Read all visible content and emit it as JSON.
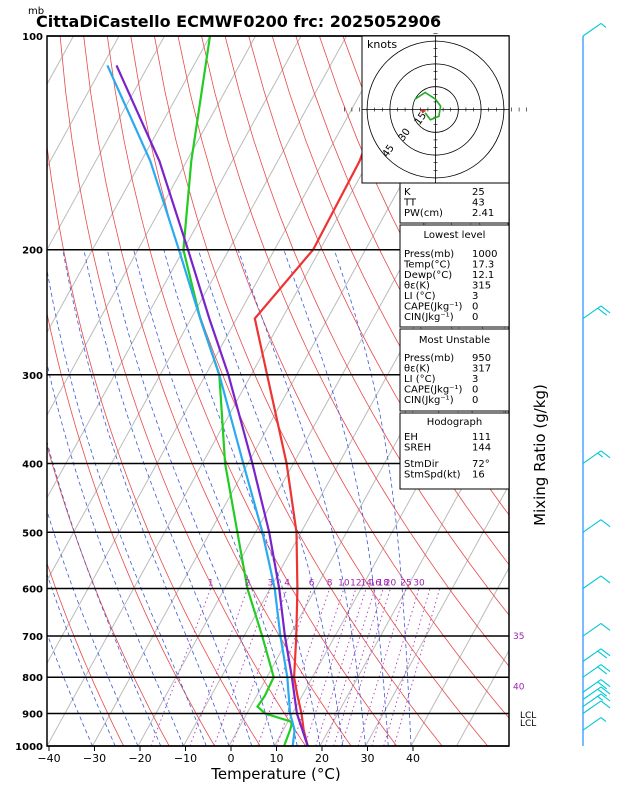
{
  "header": {
    "unit_top": "mb",
    "title": "CittaDiCastello ECMWF0200 frc: 2025052906"
  },
  "chart_data": {
    "type": "skew-t",
    "xlabel": "Temperature (°C)",
    "ylabel_right": "Mixing Ratio (g/kg)",
    "x_ticks": [
      "−40",
      "−30",
      "−20",
      "−10",
      "0",
      "10",
      "20",
      "30",
      "40"
    ],
    "y_ticks": [
      {
        "p": 100,
        "label": "100"
      },
      {
        "p": 200,
        "label": "200"
      },
      {
        "p": 300,
        "label": "300"
      },
      {
        "p": 400,
        "label": "400"
      },
      {
        "p": 500,
        "label": "500"
      },
      {
        "p": 600,
        "label": "600"
      },
      {
        "p": 700,
        "label": "700"
      },
      {
        "p": 800,
        "label": "800"
      },
      {
        "p": 900,
        "label": "900"
      },
      {
        "p": 1000,
        "label": "1000"
      }
    ],
    "xlim": [
      -40,
      40
    ],
    "ylim_hpa": [
      1000,
      100
    ],
    "mixing_ratio_labels": [
      "1",
      "2",
      "3",
      "4",
      "6",
      "8",
      "10",
      "12",
      "14",
      "16",
      "18",
      "20",
      "25",
      "30"
    ],
    "mixing_ratio_side_labels": [
      "35",
      "40"
    ],
    "lcl_labels": [
      "LCL",
      "LCL"
    ],
    "series": [
      {
        "name": "Temperature",
        "color": "#ee3333",
        "points": [
          [
            1000,
            17.3
          ],
          [
            950,
            14.5
          ],
          [
            900,
            12.0
          ],
          [
            850,
            9.0
          ],
          [
            800,
            6.0
          ],
          [
            700,
            1.5
          ],
          [
            600,
            -4.0
          ],
          [
            500,
            -11.0
          ],
          [
            400,
            -21.5
          ],
          [
            300,
            -36.5
          ],
          [
            250,
            -46.0
          ],
          [
            200,
            -41.5
          ],
          [
            150,
            -42.0
          ],
          [
            100,
            -47.0
          ]
        ]
      },
      {
        "name": "Dewpoint",
        "color": "#22cc22",
        "points": [
          [
            1000,
            12.1
          ],
          [
            950,
            11.5
          ],
          [
            925,
            11.0
          ],
          [
            900,
            4.0
          ],
          [
            880,
            1.5
          ],
          [
            850,
            1.8
          ],
          [
            800,
            1.5
          ],
          [
            700,
            -6.0
          ],
          [
            600,
            -15.0
          ],
          [
            500,
            -24.0
          ],
          [
            400,
            -35.0
          ],
          [
            300,
            -47.0
          ],
          [
            250,
            -58.0
          ],
          [
            200,
            -70.0
          ],
          [
            150,
            -79.0
          ],
          [
            100,
            -90.0
          ]
        ]
      },
      {
        "name": "Parcel",
        "color": "#7a22cc",
        "points": [
          [
            1000,
            17.3
          ],
          [
            900,
            11.0
          ],
          [
            800,
            5.5
          ],
          [
            700,
            -1.0
          ],
          [
            600,
            -8.0
          ],
          [
            500,
            -17.0
          ],
          [
            400,
            -29.0
          ],
          [
            300,
            -45.0
          ],
          [
            250,
            -56.0
          ],
          [
            200,
            -69.0
          ],
          [
            150,
            -86.0
          ],
          [
            110,
            -107.0
          ]
        ]
      },
      {
        "name": "Dewpoint parcel",
        "color": "#2aaaf0",
        "points": [
          [
            1000,
            14.0
          ],
          [
            950,
            12.5
          ],
          [
            900,
            9.5
          ],
          [
            800,
            4.5
          ],
          [
            700,
            -2.0
          ],
          [
            600,
            -9.0
          ],
          [
            500,
            -18.5
          ],
          [
            400,
            -31.0
          ],
          [
            300,
            -47.0
          ],
          [
            250,
            -58.0
          ],
          [
            200,
            -71.0
          ],
          [
            150,
            -88.0
          ],
          [
            110,
            -109.0
          ]
        ]
      }
    ],
    "wind_barbs": [
      {
        "p": 100,
        "dir": 270,
        "kt": 5
      },
      {
        "p": 250,
        "dir": 225,
        "kt": 20
      },
      {
        "p": 400,
        "dir": 225,
        "kt": 15
      },
      {
        "p": 500,
        "dir": 225,
        "kt": 10
      },
      {
        "p": 600,
        "dir": 225,
        "kt": 10
      },
      {
        "p": 700,
        "dir": 225,
        "kt": 10
      },
      {
        "p": 760,
        "dir": 225,
        "kt": 20
      },
      {
        "p": 800,
        "dir": 230,
        "kt": 20
      },
      {
        "p": 840,
        "dir": 235,
        "kt": 20
      },
      {
        "p": 860,
        "dir": 240,
        "kt": 20
      },
      {
        "p": 880,
        "dir": 240,
        "kt": 15
      },
      {
        "p": 900,
        "dir": 250,
        "kt": 10
      },
      {
        "p": 950,
        "dir": 270,
        "kt": 5
      }
    ],
    "hodograph": {
      "unit": "knots",
      "ring_labels": [
        "15",
        "30",
        "45"
      ],
      "points": [
        [
          -12,
          -6
        ],
        [
          -6,
          -10
        ],
        [
          0,
          -6
        ],
        [
          3,
          -2
        ],
        [
          2,
          4
        ],
        [
          -3,
          6
        ],
        [
          -6,
          2
        ]
      ]
    }
  },
  "indices": {
    "top": [
      {
        "k": "K",
        "v": "25"
      },
      {
        "k": "TT",
        "v": "43"
      },
      {
        "k": "PW(cm)",
        "v": "2.41"
      }
    ],
    "lowest_title": "Lowest level",
    "lowest": [
      {
        "k": "Press(mb)",
        "v": "1000"
      },
      {
        "k": "Temp(°C)",
        "v": "17.3"
      },
      {
        "k": "Dewp(°C)",
        "v": "12.1"
      },
      {
        "k": "θε(K)",
        "v": "315"
      },
      {
        "k": "LI (°C)",
        "v": "3"
      },
      {
        "k": "CAPE(Jkg⁻¹)",
        "v": "0"
      },
      {
        "k": "CIN(Jkg⁻¹)",
        "v": "0"
      }
    ],
    "mu_title": "Most Unstable",
    "mu": [
      {
        "k": "Press(mb)",
        "v": "950"
      },
      {
        "k": "θε(K)",
        "v": "317"
      },
      {
        "k": "LI (°C)",
        "v": "3"
      },
      {
        "k": "CAPE(Jkg⁻¹)",
        "v": "0"
      },
      {
        "k": "CIN(Jkg⁻¹)",
        "v": "0"
      }
    ],
    "hodo_title": "Hodograph",
    "hodo": [
      {
        "k": "EH",
        "v": "111"
      },
      {
        "k": "SREH",
        "v": "144"
      },
      {
        "k": "StmDir",
        "v": "72°"
      },
      {
        "k": "StmSpd(kt)",
        "v": "16"
      }
    ]
  }
}
